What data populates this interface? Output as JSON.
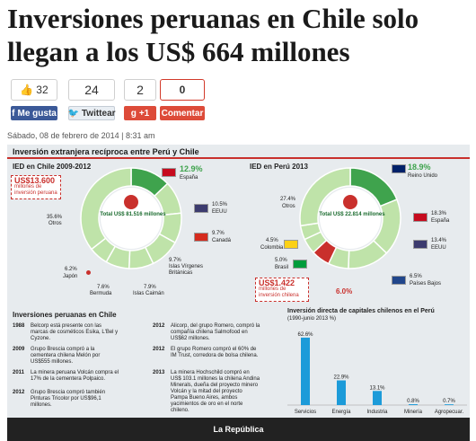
{
  "article": {
    "headline": "Inversiones peruanas en Chile solo llegan a los US$ 664 millones",
    "dateline": "Sábado, 08 de febrero de 2014 | 8:31 am"
  },
  "share": {
    "like_count": "32",
    "tweet_count": "24",
    "gplus_count": "2",
    "comment_count": "0",
    "like_label": "Me gusta",
    "tweet_label": "Twittear",
    "gplus_label": "+1",
    "comment_label": "Comentar",
    "icons": [
      "thumbs-up-icon",
      "facebook-icon",
      "twitter-icon",
      "google-plus-icon"
    ]
  },
  "infographic": {
    "title": "Inversión extranjera recíproca entre Perú y Chile",
    "chile_section": {
      "title": "IED en Chile 2009-2012",
      "total": "Total US$ 81.516 millones",
      "peru_callout_value": "US$13.600",
      "peru_callout_text": "millones de inversión peruana",
      "slices": [
        {
          "label": "España",
          "value": "12.9%"
        },
        {
          "label": "EEUU",
          "value": "10.5%"
        },
        {
          "label": "Canadá",
          "value": "9.7%"
        },
        {
          "label": "Islas Vírgenes Británicas",
          "value": "9.7%"
        },
        {
          "label": "Islas Caimán",
          "value": "7.9%"
        },
        {
          "label": "Bermuda",
          "value": "7.6%"
        },
        {
          "label": "Japón",
          "value": "6.2%"
        },
        {
          "label": "Otros",
          "value": "35.6%"
        }
      ]
    },
    "peru_section": {
      "title": "IED en Perú 2013",
      "total": "Total US$ 22.814 millones",
      "chile_callout_value": "US$1.422",
      "chile_callout_text": "millones de inversión chilena",
      "chile_pct": "6.0%",
      "slices": [
        {
          "label": "Reino Unido",
          "value": "18.9%"
        },
        {
          "label": "España",
          "value": "18.3%"
        },
        {
          "label": "EEUU",
          "value": "13.4%"
        },
        {
          "label": "Países Bajos",
          "value": "6.5%"
        },
        {
          "label": "Brasil",
          "value": "5.0%"
        },
        {
          "label": "Colombia",
          "value": "4.5%"
        },
        {
          "label": "Otros",
          "value": "27.4%"
        }
      ]
    },
    "table": {
      "title": "Inversiones peruanas en Chile",
      "left": [
        {
          "year": "1988",
          "text": "Belcorp está presente con las marcas de cosméticos Esika, L'Bel y Cyzone."
        },
        {
          "year": "2009",
          "text": "Grupo Brescia compró a la cementera chilena Melón por US$555 millones."
        },
        {
          "year": "2011",
          "text": "La minera peruana Volcán compra el 17% de la cementera Polpaico."
        },
        {
          "year": "2012",
          "text": "Grupo Brescia compró también Pinturas Tricolor por US$96,1 millones."
        }
      ],
      "right": [
        {
          "year": "2012",
          "text": "Alicorp, del grupo Romero, compró la compañía chilena Salmofood en US$62 millones."
        },
        {
          "year": "2012",
          "text": "El grupo Romero compró el 60% de IM Trust, corredora de bolsa chilena."
        },
        {
          "year": "2013",
          "text": "La minera Hochschild compró en US$ 103.1 millones la chilena Andina Minerals, dueña del proyecto minero Volcán y la mitad del proyecto Pampa Bueno Aires, ambos yacimientos de oro en el norte chileno."
        }
      ]
    },
    "bar_title": "Inversión directa de capitales chilenos en el Perú",
    "bar_subtitle": "(1990-junio 2013 %)",
    "footer": "La República"
  },
  "chart_data": [
    {
      "type": "pie",
      "title": "IED en Chile 2009-2012",
      "categories": [
        "España",
        "EEUU",
        "Canadá",
        "Islas Vírgenes Británicas",
        "Islas Caimán",
        "Bermuda",
        "Japón",
        "Otros"
      ],
      "values": [
        12.9,
        10.5,
        9.7,
        9.7,
        7.9,
        7.6,
        6.2,
        35.6
      ]
    },
    {
      "type": "pie",
      "title": "IED en Perú 2013",
      "categories": [
        "Reino Unido",
        "España",
        "EEUU",
        "Países Bajos",
        "Chile",
        "Brasil",
        "Colombia",
        "Otros"
      ],
      "values": [
        18.9,
        18.3,
        13.4,
        6.5,
        6.0,
        5.0,
        4.5,
        27.4
      ]
    },
    {
      "type": "bar",
      "title": "Inversión directa de capitales chilenos en el Perú",
      "subtitle": "(1990-junio 2013 %)",
      "categories": [
        "Servicios",
        "Energía",
        "Industria",
        "Minería",
        "Agropecuar."
      ],
      "values": [
        62.6,
        22.9,
        13.1,
        0.8,
        0.7
      ],
      "labels": [
        "62.6%",
        "22.9%",
        "13.1%",
        "0.8%",
        "0.7%"
      ],
      "ylim": [
        0,
        70
      ]
    }
  ],
  "colors": {
    "donut_green": "#3fa34d",
    "donut_light": "#bfe3a9",
    "accent_red": "#c9302c",
    "bar_blue": "#1c9bd9"
  }
}
